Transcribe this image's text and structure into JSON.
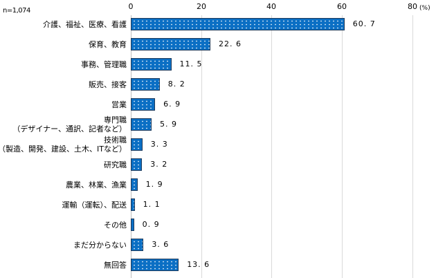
{
  "chart_data": {
    "type": "bar",
    "orientation": "horizontal",
    "title": "",
    "sample_size_label": "n=1,074",
    "unit_label": "(%)",
    "xlabel": "",
    "ylabel": "",
    "xlim": [
      0,
      80
    ],
    "x_ticks": [
      "0",
      "20",
      "40",
      "60",
      "80"
    ],
    "grid": true,
    "legend": null,
    "bar_color": "#0b6fc4",
    "bar_pattern": "white-dots",
    "categories": [
      "介護、福祉、医療、看護",
      "保育、教育",
      "事務、管理職",
      "販売、接客",
      "営業",
      "専門職（デザイナー、通訳、記者など）",
      "技術職（製造、開発、建設、土木、ITなど）",
      "研究職",
      "農業、林業、漁業",
      "運輸（運転）、配送",
      "その他",
      "まだ分からない",
      "無回答"
    ],
    "values": [
      60.7,
      22.6,
      11.5,
      8.2,
      6.9,
      5.9,
      3.3,
      3.2,
      1.9,
      1.1,
      0.9,
      3.6,
      13.6
    ],
    "value_labels": [
      "60.7",
      "22.6",
      "11.5",
      "8.2",
      "6.9",
      "5.9",
      "3.3",
      "3.2",
      "1.9",
      "1.1",
      "0.9",
      "3.6",
      "13.6"
    ]
  },
  "rows": [
    {
      "lines": [
        "介護、福祉、医療、看護"
      ],
      "value": 60.7,
      "label": "60. 7"
    },
    {
      "lines": [
        "保育、教育"
      ],
      "value": 22.6,
      "label": "22. 6"
    },
    {
      "lines": [
        "事務、管理職"
      ],
      "value": 11.5,
      "label": "11. 5"
    },
    {
      "lines": [
        "販売、接客"
      ],
      "value": 8.2,
      "label": "8. 2"
    },
    {
      "lines": [
        "営業"
      ],
      "value": 6.9,
      "label": "6. 9"
    },
    {
      "lines": [
        "専門職",
        "（デザイナー、通訳、記者など）"
      ],
      "value": 5.9,
      "label": "5. 9"
    },
    {
      "lines": [
        "技術職",
        "（製造、開発、建設、土木、ITなど）"
      ],
      "value": 3.3,
      "label": "3. 3"
    },
    {
      "lines": [
        "研究職"
      ],
      "value": 3.2,
      "label": "3. 2"
    },
    {
      "lines": [
        "農業、林業、漁業"
      ],
      "value": 1.9,
      "label": "1. 9"
    },
    {
      "lines": [
        "運輸（運転）、配送"
      ],
      "value": 1.1,
      "label": "1. 1"
    },
    {
      "lines": [
        "その他"
      ],
      "value": 0.9,
      "label": "0. 9"
    },
    {
      "lines": [
        "まだ分からない"
      ],
      "value": 3.6,
      "label": "3. 6"
    },
    {
      "lines": [
        "無回答"
      ],
      "value": 13.6,
      "label": "13. 6"
    }
  ]
}
